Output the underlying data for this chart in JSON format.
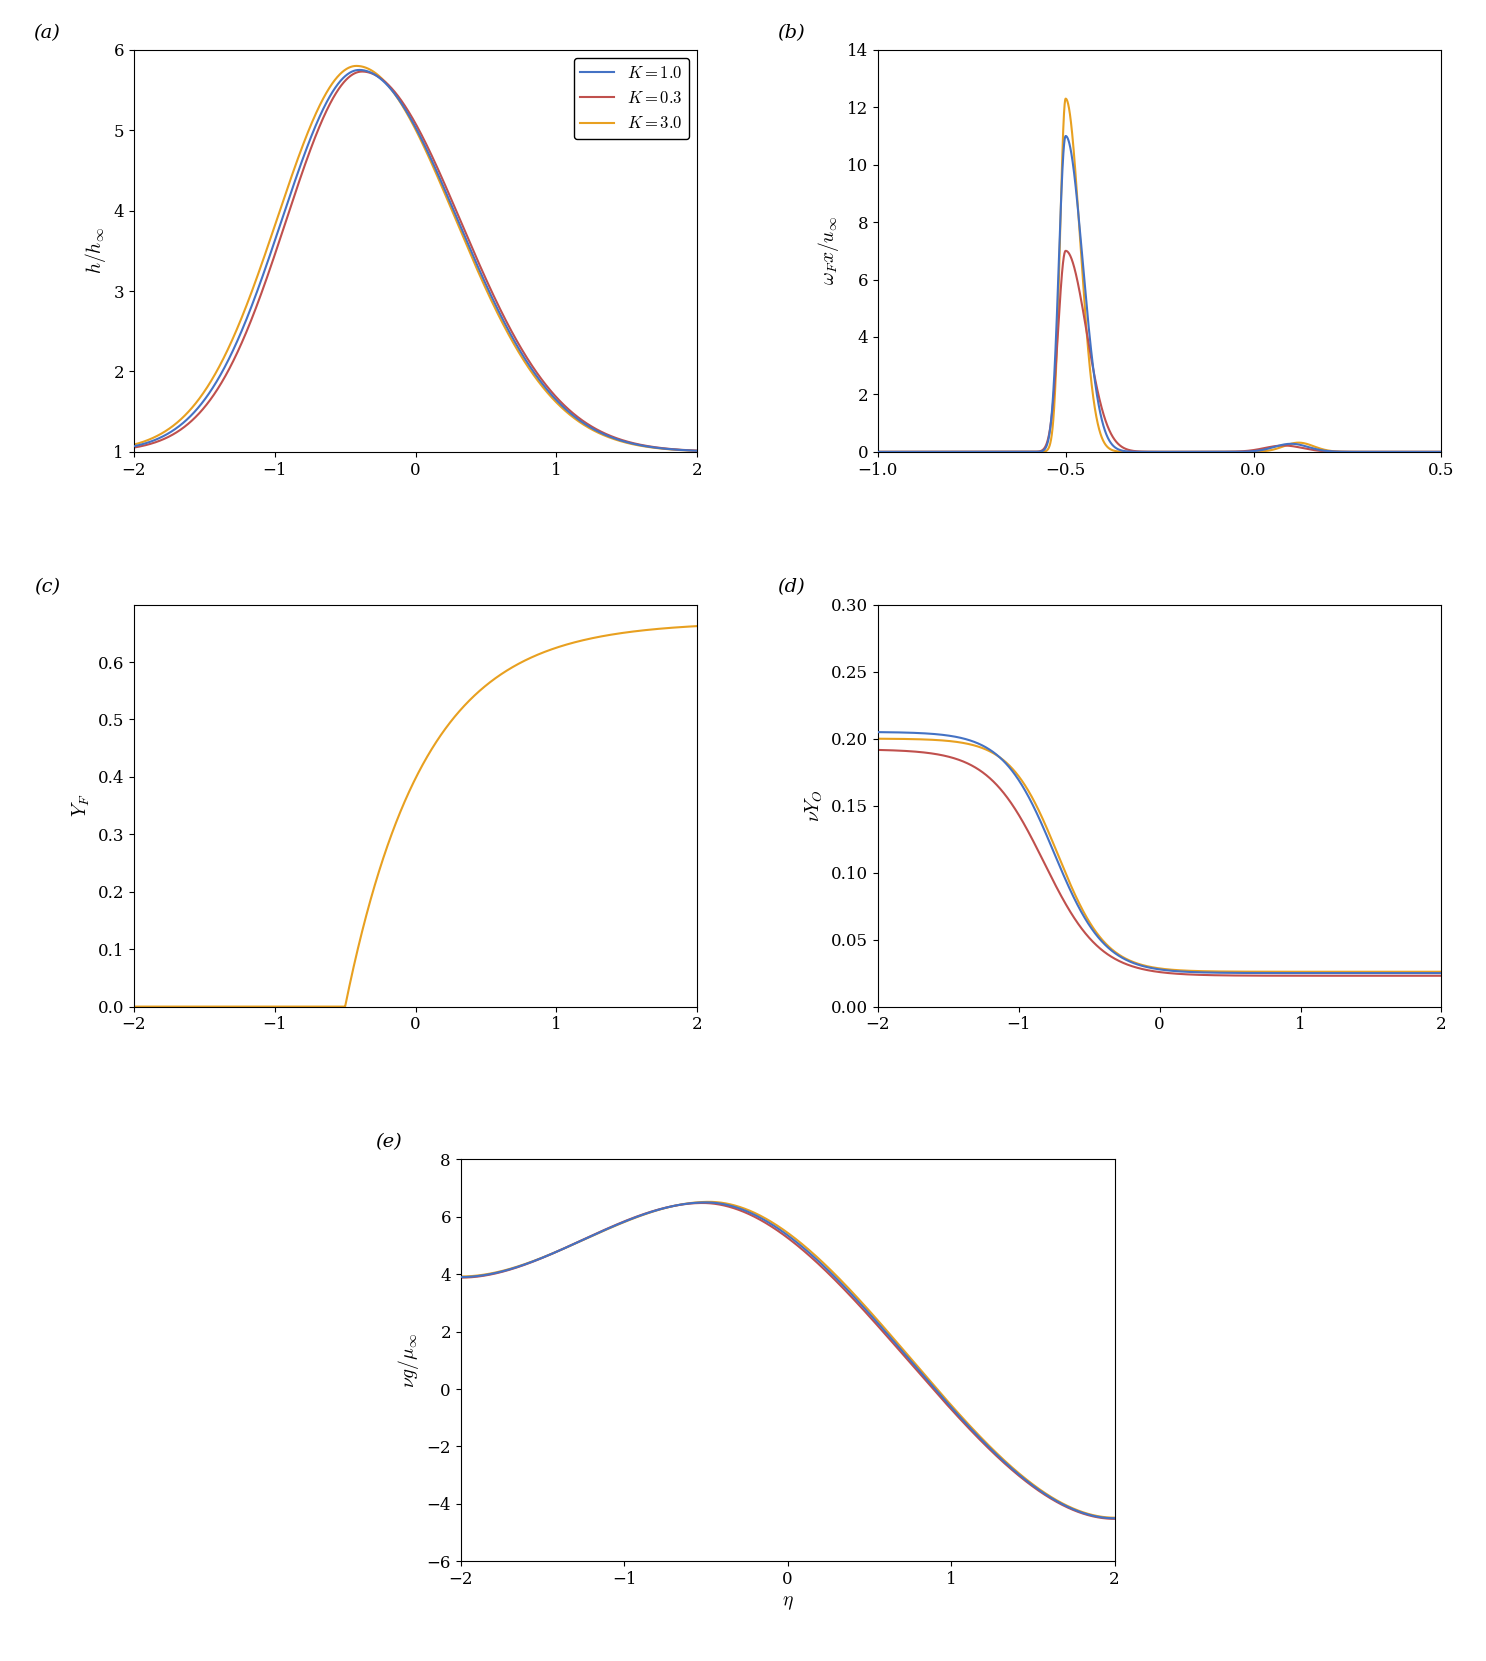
{
  "fig_width": 14.86,
  "fig_height": 16.61,
  "colors": {
    "K1": "#4472C4",
    "K03": "#C0504D",
    "K3": "#E8A020"
  },
  "legend_labels": [
    "K = 1.0",
    "K = 0.3",
    "K = 3.0"
  ],
  "panel_labels": [
    "(a)",
    "(b)",
    "(c)",
    "(d)",
    "(e)"
  ],
  "subplot_a": {
    "xlim": [
      -2,
      2
    ],
    "ylim": [
      1,
      6
    ],
    "yticks": [
      1,
      2,
      3,
      4,
      5,
      6
    ],
    "xticks": [
      -2,
      -1,
      0,
      1,
      2
    ]
  },
  "subplot_b": {
    "xlim": [
      -1.0,
      0.5
    ],
    "ylim": [
      0,
      14
    ],
    "yticks": [
      0,
      2,
      4,
      6,
      8,
      10,
      12,
      14
    ],
    "xticks": [
      -1.0,
      -0.5,
      0.0,
      0.5
    ]
  },
  "subplot_c": {
    "xlim": [
      -2,
      2
    ],
    "ylim": [
      0,
      0.7
    ],
    "yticks": [
      0,
      0.1,
      0.2,
      0.3,
      0.4,
      0.5,
      0.6
    ],
    "xticks": [
      -2,
      -1,
      0,
      1,
      2
    ]
  },
  "subplot_d": {
    "xlim": [
      -2,
      2
    ],
    "ylim": [
      0,
      0.3
    ],
    "yticks": [
      0,
      0.05,
      0.1,
      0.15,
      0.2,
      0.25,
      0.3
    ],
    "xticks": [
      -2,
      -1,
      0,
      1,
      2
    ]
  },
  "subplot_e": {
    "xlim": [
      -2,
      2
    ],
    "ylim": [
      -6,
      8
    ],
    "yticks": [
      -6,
      -4,
      -2,
      0,
      2,
      4,
      6,
      8
    ],
    "xticks": [
      -2,
      -1,
      0,
      1,
      2
    ]
  }
}
